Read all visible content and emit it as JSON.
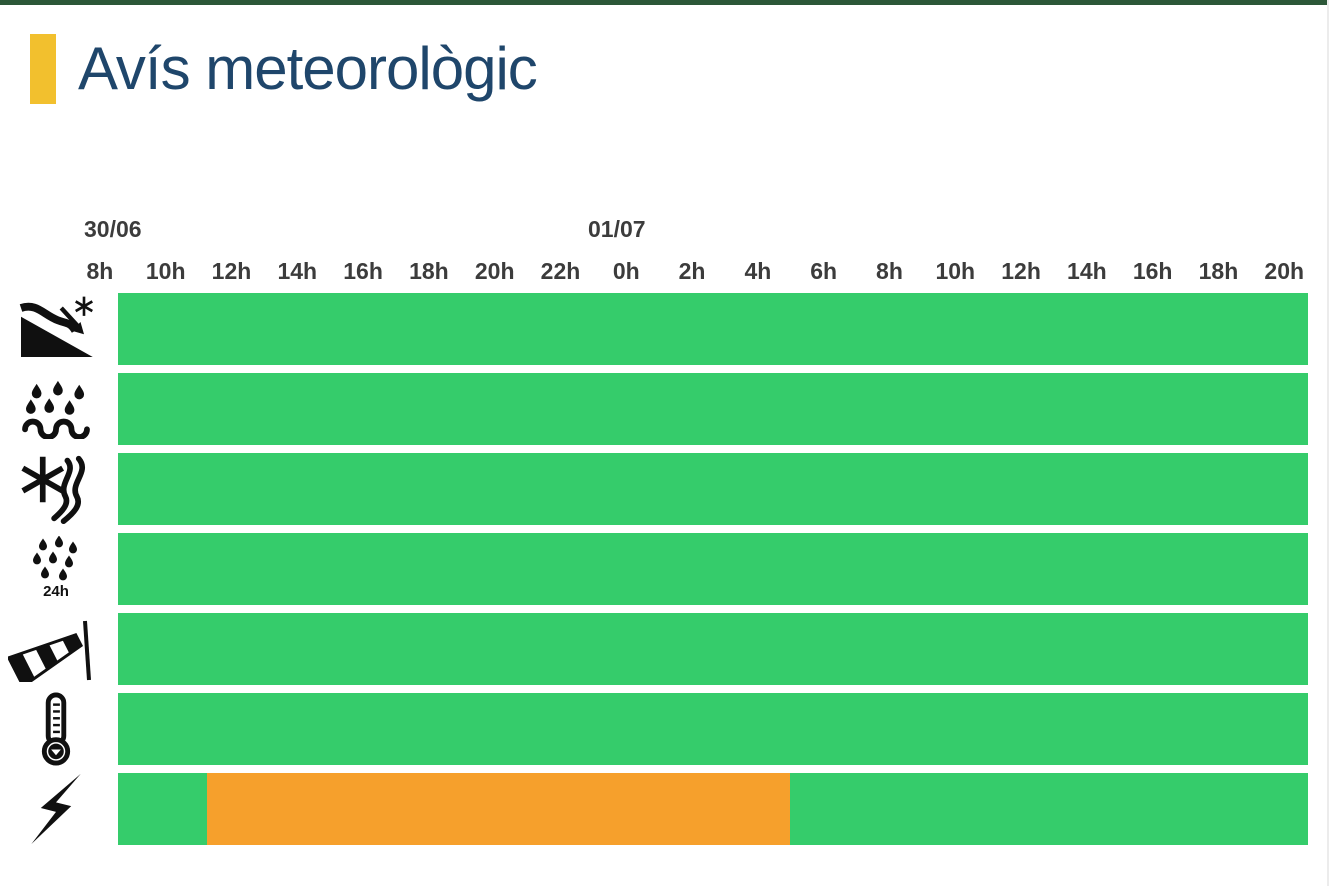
{
  "page": {
    "title": "Avís meteorològic"
  },
  "colors": {
    "top_strip": "#2C5738",
    "accent_bar": "#F2C02E",
    "title_text": "#1F466B",
    "axis_label": "#3C3C3C",
    "status_green": "#35CC6B",
    "status_orange": "#F6A02C",
    "icon": "#101010"
  },
  "chart_data": {
    "type": "heatmap",
    "title": "Avís meteorològic",
    "xlabel": "",
    "ylabel": "",
    "legend": null,
    "grid": false,
    "date_labels": [
      {
        "text": "30/06",
        "above_tick": "8h"
      },
      {
        "text": "01/07",
        "above_tick": "0h"
      }
    ],
    "x_tick_labels": [
      "8h",
      "10h",
      "12h",
      "14h",
      "16h",
      "18h",
      "20h",
      "22h",
      "0h",
      "2h",
      "4h",
      "6h",
      "8h",
      "10h",
      "12h",
      "14h",
      "16h",
      "18h",
      "20h"
    ],
    "x_range_hours": 36,
    "status_colors": {
      "green": "#35CC6B",
      "orange": "#F6A02C"
    },
    "rows": [
      {
        "icon": "avalanche-icon",
        "segments": [
          {
            "status": "green",
            "start_pct": 0,
            "end_pct": 100
          }
        ]
      },
      {
        "icon": "heavy-rain-icon",
        "segments": [
          {
            "status": "green",
            "start_pct": 0,
            "end_pct": 100
          }
        ]
      },
      {
        "icon": "snow-wind-icon",
        "segments": [
          {
            "status": "green",
            "start_pct": 0,
            "end_pct": 100
          }
        ]
      },
      {
        "icon": "rain-24h-icon",
        "icon_label": "24h",
        "segments": [
          {
            "status": "green",
            "start_pct": 0,
            "end_pct": 100
          }
        ]
      },
      {
        "icon": "windsock-icon",
        "segments": [
          {
            "status": "green",
            "start_pct": 0,
            "end_pct": 100
          }
        ]
      },
      {
        "icon": "thermometer-icon",
        "segments": [
          {
            "status": "green",
            "start_pct": 0,
            "end_pct": 100
          }
        ]
      },
      {
        "icon": "lightning-icon",
        "segments": [
          {
            "status": "green",
            "start_pct": 0,
            "end_pct": 7.5
          },
          {
            "status": "orange",
            "start_pct": 7.5,
            "end_pct": 56.5
          },
          {
            "status": "green",
            "start_pct": 56.5,
            "end_pct": 100
          }
        ]
      }
    ]
  }
}
